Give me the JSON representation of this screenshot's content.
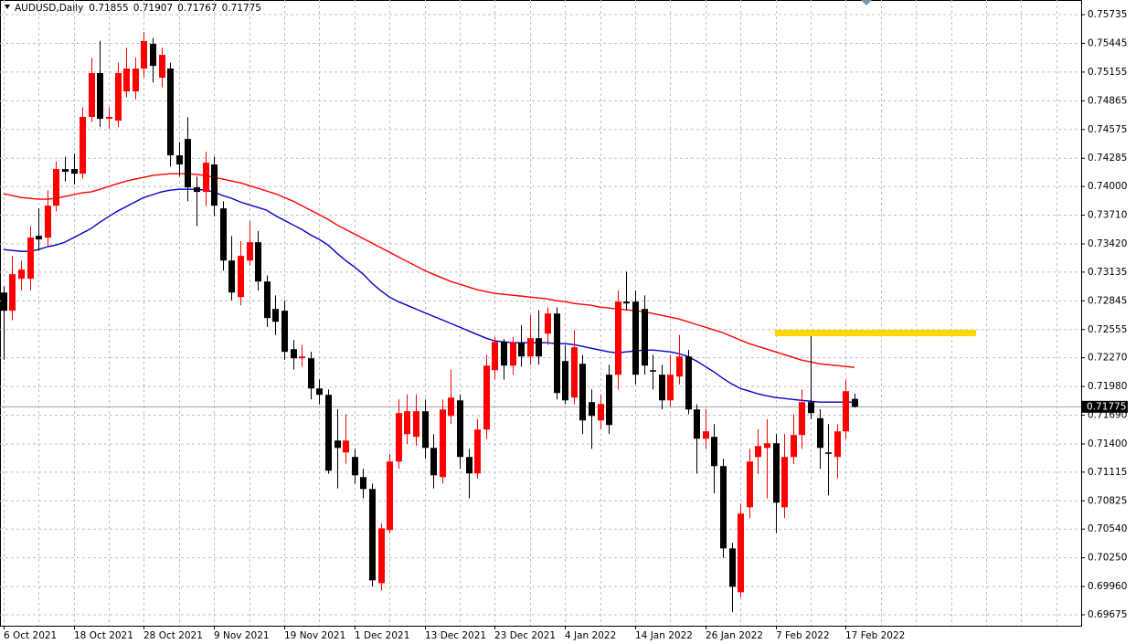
{
  "chart_data": {
    "type": "candlestick",
    "title": "AUDUSD,Daily",
    "categories": [
      "6 Oct 2021",
      null,
      null,
      null,
      null,
      null,
      null,
      null,
      "18 Oct 2021",
      null,
      null,
      null,
      null,
      null,
      null,
      null,
      "28 Oct 2021",
      null,
      null,
      null,
      null,
      null,
      null,
      null,
      "9 Nov 2021",
      null,
      null,
      null,
      null,
      null,
      null,
      null,
      "19 Nov 2021",
      null,
      null,
      null,
      null,
      null,
      null,
      null,
      "1 Dec 2021",
      null,
      null,
      null,
      null,
      null,
      null,
      null,
      "13 Dec 2021",
      null,
      null,
      null,
      null,
      null,
      null,
      null,
      "23 Dec 2021",
      null,
      null,
      null,
      null,
      null,
      null,
      null,
      "4 Jan 2022",
      null,
      null,
      null,
      null,
      null,
      null,
      null,
      "14 Jan 2022",
      null,
      null,
      null,
      null,
      null,
      null,
      null,
      "26 Jan 2022",
      null,
      null,
      null,
      null,
      null,
      null,
      null,
      "7 Feb 2022",
      null,
      null,
      null,
      null,
      null,
      null,
      null,
      "17 Feb 2022",
      null
    ],
    "open": [
      0.72929,
      0.72745,
      0.73068,
      0.73068,
      0.73502,
      0.73483,
      0.73806,
      0.74176,
      0.74176,
      0.74129,
      0.74702,
      0.75145,
      0.74683,
      0.74665,
      0.7496,
      0.7496,
      0.75191,
      0.7544,
      0.75098,
      0.75191,
      0.74314,
      0.7448,
      0.73991,
      0.73945,
      0.74222,
      0.73779,
      0.73252,
      0.72883,
      0.73252,
      0.73437,
      0.7304,
      0.72763,
      0.72745,
      0.72357,
      0.72265,
      0.72265,
      0.7196,
      0.71896,
      0.71434,
      0.71314,
      0.71268,
      0.71065,
      0.70945,
      0.69994,
      0.7053,
      0.71222,
      0.71499,
      0.71471,
      0.7173,
      0.7136,
      0.71065,
      0.71683,
      0.7184,
      0.71268,
      0.71102,
      0.71545,
      0.72145,
      0.72431,
      0.72191,
      0.72422,
      0.72283,
      0.72468,
      0.72514,
      0.72717,
      0.72237,
      0.71868,
      0.7221,
      0.71822,
      0.71637,
      0.72099,
      0.72099,
      0.72837,
      0.72837,
      0.72763,
      0.72145,
      0.72099,
      0.7184,
      0.7208,
      0.72283,
      0.71748,
      0.71453,
      0.71471,
      0.71176,
      0.70345,
      0.69902,
      0.7076,
      0.71268,
      0.7136,
      0.71407,
      0.7076,
      0.71268,
      0.7149,
      0.71822,
      0.7166,
      0.71314,
      0.71268,
      0.71527,
      0.71855
    ],
    "high": [
      0.7299,
      0.733,
      0.7325,
      0.736,
      0.7378,
      0.7396,
      0.7425,
      0.743,
      0.7433,
      0.748,
      0.753,
      0.7547,
      0.748,
      0.7525,
      0.754,
      0.753,
      0.7556,
      0.755,
      0.754,
      0.7525,
      0.7445,
      0.747,
      0.741,
      0.7435,
      0.743,
      0.7385,
      0.735,
      0.7345,
      0.7365,
      0.7355,
      0.731,
      0.729,
      0.7285,
      0.7245,
      0.724,
      0.7233,
      0.7205,
      0.7195,
      0.7175,
      0.717,
      0.7135,
      0.7115,
      0.71,
      0.706,
      0.713,
      0.7185,
      0.719,
      0.719,
      0.7185,
      0.715,
      0.7185,
      0.7215,
      0.719,
      0.7135,
      0.7165,
      0.723,
      0.7248,
      0.7246,
      0.7248,
      0.726,
      0.727,
      0.7275,
      0.7278,
      0.7278,
      0.724,
      0.7255,
      0.723,
      0.7195,
      0.719,
      0.722,
      0.7295,
      0.7314,
      0.7295,
      0.729,
      0.723,
      0.722,
      0.723,
      0.725,
      0.7235,
      0.718,
      0.7175,
      0.716,
      0.7125,
      0.704,
      0.708,
      0.7135,
      0.7155,
      0.7165,
      0.715,
      0.715,
      0.717,
      0.7195,
      0.7249,
      0.7175,
      0.716,
      0.716,
      0.7205,
      0.71907
    ],
    "low": [
      0.7225,
      0.7265,
      0.7295,
      0.7295,
      0.7335,
      0.734,
      0.7375,
      0.7405,
      0.7402,
      0.7408,
      0.7465,
      0.746,
      0.7458,
      0.746,
      0.749,
      0.7488,
      0.751,
      0.7505,
      0.75,
      0.742,
      0.741,
      0.7385,
      0.736,
      0.738,
      0.737,
      0.7315,
      0.7285,
      0.728,
      0.732,
      0.7295,
      0.7258,
      0.725,
      0.7225,
      0.7215,
      0.7218,
      0.7185,
      0.718,
      0.711,
      0.7095,
      0.712,
      0.71,
      0.7085,
      0.6996,
      0.6992,
      0.705,
      0.7115,
      0.714,
      0.7138,
      0.7125,
      0.7095,
      0.71,
      0.716,
      0.7115,
      0.7085,
      0.7105,
      0.7145,
      0.7205,
      0.7205,
      0.721,
      0.7218,
      0.722,
      0.722,
      0.724,
      0.7185,
      0.718,
      0.718,
      0.715,
      0.7135,
      0.7155,
      0.715,
      0.7195,
      0.7275,
      0.72,
      0.721,
      0.7195,
      0.7175,
      0.7178,
      0.72,
      0.717,
      0.711,
      0.7135,
      0.709,
      0.7025,
      0.697,
      0.6985,
      0.7065,
      0.711,
      0.7085,
      0.705,
      0.7065,
      0.712,
      0.7135,
      0.7165,
      0.7115,
      0.7088,
      0.7105,
      0.7145,
      0.71767
    ],
    "close": [
      0.72745,
      0.73114,
      0.7316,
      0.73483,
      0.73465,
      0.73806,
      0.74176,
      0.74148,
      0.74129,
      0.74702,
      0.75145,
      0.74683,
      0.74702,
      0.75145,
      0.75191,
      0.75191,
      0.75468,
      0.75218,
      0.75329,
      0.74314,
      0.74222,
      0.73991,
      0.73945,
      0.7424,
      0.73806,
      0.73252,
      0.72929,
      0.73299,
      0.73437,
      0.7304,
      0.72671,
      0.72634,
      0.7233,
      0.72265,
      0.72283,
      0.7196,
      0.71896,
      0.7113,
      0.7136,
      0.71434,
      0.71083,
      0.70945,
      0.70022,
      0.70548,
      0.71222,
      0.71711,
      0.7173,
      0.7173,
      0.7136,
      0.71083,
      0.71748,
      0.71868,
      0.71268,
      0.71102,
      0.71545,
      0.72191,
      0.72431,
      0.72191,
      0.72422,
      0.72283,
      0.72468,
      0.72283,
      0.72717,
      0.71914,
      0.7184,
      0.72376,
      0.71637,
      0.71683,
      0.71803,
      0.71591,
      0.72837,
      0.72819,
      0.72099,
      0.72191,
      0.7213,
      0.7184,
      0.72099,
      0.72283,
      0.71748,
      0.71453,
      0.71527,
      0.71176,
      0.70345,
      0.69957,
      0.70696,
      0.71222,
      0.71379,
      0.71407,
      0.70807,
      0.71268,
      0.7149,
      0.71822,
      0.71711,
      0.7136,
      0.713,
      0.71527,
      0.71933,
      0.71775
    ],
    "up_color": "#ff0000",
    "down_color": "#000000",
    "lines": [
      {
        "color": "#ff0000",
        "values": [
          0.73926,
          0.73908,
          0.73889,
          0.7388,
          0.73871,
          0.73871,
          0.7388,
          0.73899,
          0.73917,
          0.73936,
          0.73945,
          0.73972,
          0.74,
          0.74028,
          0.74055,
          0.74074,
          0.74092,
          0.74111,
          0.7412,
          0.74129,
          0.74129,
          0.74129,
          0.7412,
          0.74111,
          0.74092,
          0.74074,
          0.74055,
          0.74037,
          0.74009,
          0.73982,
          0.73954,
          0.73926,
          0.73889,
          0.73852,
          0.73806,
          0.7376,
          0.73714,
          0.73668,
          0.73612,
          0.73566,
          0.7352,
          0.73474,
          0.73428,
          0.73382,
          0.73336,
          0.73289,
          0.73243,
          0.73197,
          0.73151,
          0.73114,
          0.73077,
          0.7304,
          0.73013,
          0.72985,
          0.72957,
          0.72939,
          0.7292,
          0.72911,
          0.72902,
          0.72893,
          0.72883,
          0.72874,
          0.72865,
          0.72846,
          0.72837,
          0.72819,
          0.72809,
          0.728,
          0.72782,
          0.72773,
          0.72763,
          0.72754,
          0.72745,
          0.72736,
          0.72717,
          0.72699,
          0.7268,
          0.72662,
          0.72634,
          0.72606,
          0.72579,
          0.72551,
          0.72523,
          0.72486,
          0.72449,
          0.72413,
          0.72385,
          0.72357,
          0.7233,
          0.72302,
          0.72274,
          0.72246,
          0.72228,
          0.7221,
          0.722,
          0.72191,
          0.72182,
          0.72173
        ]
      },
      {
        "color": "#0000cc",
        "values": [
          0.73363,
          0.73354,
          0.73345,
          0.73345,
          0.73363,
          0.73391,
          0.73409,
          0.73437,
          0.73483,
          0.73529,
          0.73576,
          0.7364,
          0.73696,
          0.73751,
          0.73797,
          0.73843,
          0.73889,
          0.73917,
          0.73945,
          0.73963,
          0.73972,
          0.73972,
          0.73972,
          0.73963,
          0.73945,
          0.73908,
          0.7388,
          0.73843,
          0.73815,
          0.73788,
          0.7376,
          0.73705,
          0.73659,
          0.73612,
          0.73566,
          0.73511,
          0.73465,
          0.73409,
          0.73326,
          0.73252,
          0.73188,
          0.73114,
          0.73022,
          0.72948,
          0.72883,
          0.72837,
          0.728,
          0.72763,
          0.72726,
          0.72689,
          0.72653,
          0.72616,
          0.72579,
          0.72542,
          0.72505,
          0.72468,
          0.7244,
          0.72431,
          0.72422,
          0.72422,
          0.72422,
          0.72422,
          0.72422,
          0.72413,
          0.72413,
          0.72403,
          0.72385,
          0.72366,
          0.72348,
          0.7233,
          0.7232,
          0.7233,
          0.72339,
          0.72348,
          0.72348,
          0.72339,
          0.7233,
          0.72311,
          0.72283,
          0.72237,
          0.72182,
          0.72126,
          0.72062,
          0.72006,
          0.7196,
          0.71933,
          0.71905,
          0.71886,
          0.71868,
          0.71859,
          0.71849,
          0.7184,
          0.71831,
          0.71822,
          0.71822,
          0.71822,
          0.71822,
          0.71822
        ]
      }
    ],
    "hline": {
      "value": 0.7252,
      "color": "#ffd700"
    },
    "ylim": [
      0.69564,
      0.75883
    ],
    "yticks": [
      0.75735,
      0.75445,
      0.75155,
      0.74865,
      0.74575,
      0.74285,
      {
        "value": 0.74,
        "label": "0.74000"
      },
      {
        "value": 0.7371,
        "label": "0.73710"
      },
      {
        "value": 0.7342,
        "label": "0.73420"
      },
      0.73135,
      0.72845,
      0.72555,
      {
        "value": 0.7227,
        "label": "0.72270"
      },
      {
        "value": 0.7198,
        "label": "0.71980"
      },
      {
        "value": 0.7169,
        "label": "0.71690"
      },
      {
        "value": 0.714,
        "label": "0.71400"
      },
      0.71115,
      0.70825,
      {
        "value": 0.7054,
        "label": "0.70540"
      },
      {
        "value": 0.7025,
        "label": "0.70250"
      },
      {
        "value": 0.6996,
        "label": "0.69960"
      },
      0.69675
    ],
    "grid": true
  }
}
